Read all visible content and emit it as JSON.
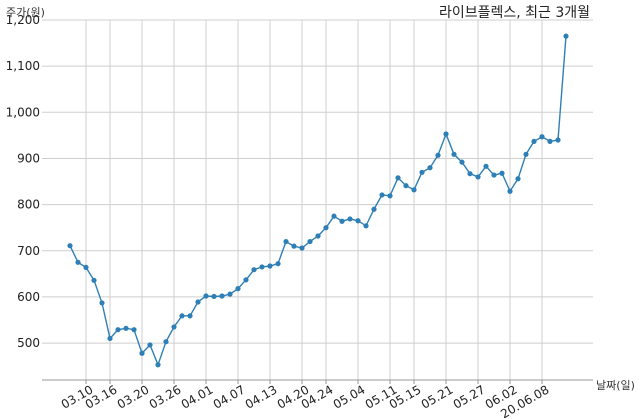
{
  "chart_data": {
    "type": "line",
    "title": "라이브플렉스, 최근 3개월",
    "xlabel": "날짜(일)",
    "ylabel": "주가(원)",
    "ylim": [
      420,
      1200
    ],
    "yticks": [
      500,
      600,
      700,
      800,
      900,
      1000,
      1100,
      1200
    ],
    "ytick_labels": [
      "500",
      "600",
      "700",
      "800",
      "900",
      "1,000",
      "1,100",
      "1,200"
    ],
    "xtick_labels": [
      "03.10",
      "03.16",
      "03.20",
      "03.26",
      "04.01",
      "04.07",
      "04.13",
      "04.20",
      "04.24",
      "05.04",
      "05.11",
      "05.15",
      "05.21",
      "05.27",
      "06.02",
      "20.06.08"
    ],
    "xtick_index": [
      2,
      5,
      9,
      13,
      17,
      21,
      25,
      29,
      32,
      36,
      40,
      43,
      47,
      51,
      55,
      59
    ],
    "grid": true,
    "series": [
      {
        "color": "#2e7fb5",
        "values": [
          711,
          675,
          664,
          636,
          587,
          510,
          529,
          532,
          529,
          478,
          496,
          453,
          503,
          535,
          559,
          559,
          589,
          602,
          601,
          602,
          606,
          618,
          637,
          659,
          665,
          667,
          672,
          720,
          710,
          706,
          720,
          732,
          750,
          775,
          764,
          769,
          765,
          754,
          790,
          821,
          819,
          858,
          841,
          832,
          870,
          880,
          907,
          953,
          909,
          892,
          867,
          860,
          883,
          864,
          868,
          829,
          856,
          909,
          937,
          947,
          937,
          940,
          1165
        ]
      }
    ]
  }
}
